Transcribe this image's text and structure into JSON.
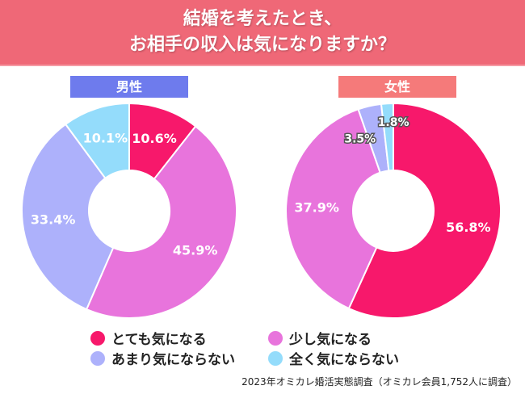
{
  "title": {
    "line1": "結婚を考えたとき、",
    "line2": "お相手の収入は気になりますか？"
  },
  "chart_data": {
    "type": "pie",
    "donut": true,
    "categories": [
      "とても気になる",
      "少し気になる",
      "あまり気にならない",
      "全く気にならない"
    ],
    "colors": [
      "#f7186b",
      "#e874dc",
      "#adb1fb",
      "#94dcfb"
    ],
    "series": [
      {
        "name": "男性",
        "label_color": "#6e7bed",
        "values": [
          10.6,
          45.9,
          33.4,
          10.1
        ]
      },
      {
        "name": "女性",
        "label_color": "#f57a7a",
        "values": [
          56.8,
          37.9,
          3.5,
          1.8
        ]
      }
    ],
    "legend_placement": "bottom"
  },
  "footnote": "2023年オミカレ婚活実態調査（オミカレ会員1,752人に調査）"
}
